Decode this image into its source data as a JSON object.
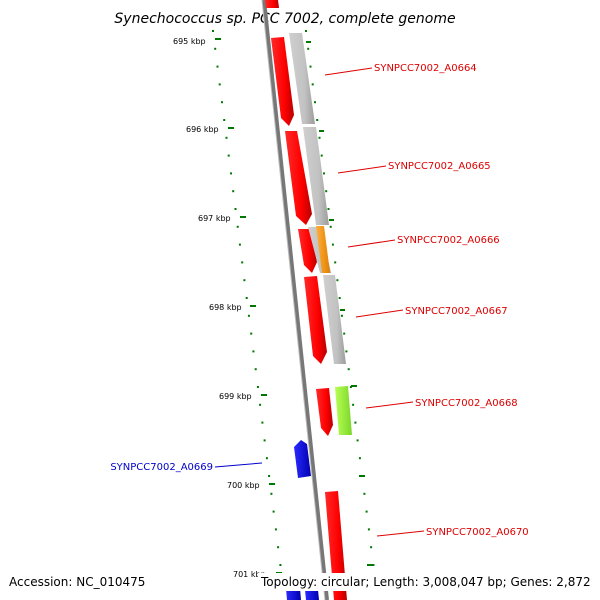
{
  "title": "Synechococcus sp. PCC 7002, complete genome",
  "footer": {
    "accession": "Accession: NC_010475",
    "topology": "Topology: circular; Length: 3,008,047 bp; Genes: 2,872"
  },
  "ticks": [
    {
      "label": "695 kbp"
    },
    {
      "label": "696 kbp"
    },
    {
      "label": "697 kbp"
    },
    {
      "label": "698 kbp"
    },
    {
      "label": "699 kbp"
    },
    {
      "label": "700 kbp"
    },
    {
      "label": "701 kbp"
    }
  ],
  "genes": [
    {
      "label": "SYNPCC7002_A0664",
      "strand": "forward",
      "color": "#dd0000"
    },
    {
      "label": "SYNPCC7002_A0665",
      "strand": "forward",
      "color": "#dd0000"
    },
    {
      "label": "SYNPCC7002_A0666",
      "strand": "forward",
      "color": "#dd0000"
    },
    {
      "label": "SYNPCC7002_A0667",
      "strand": "forward",
      "color": "#dd0000"
    },
    {
      "label": "SYNPCC7002_A0668",
      "strand": "forward",
      "color": "#dd0000"
    },
    {
      "label": "SYNPCC7002_A0669",
      "strand": "reverse",
      "color": "#0000cc"
    },
    {
      "label": "SYNPCC7002_A0670",
      "strand": "forward",
      "color": "#dd0000"
    }
  ],
  "colors": {
    "forward": "#ff0000",
    "reverse": "#0000ff",
    "cog_gray": "#c0c0c0",
    "cog_orange": "#ff9900",
    "cog_lime": "#99ff33",
    "tick": "#007700",
    "backbone": "#888888"
  }
}
